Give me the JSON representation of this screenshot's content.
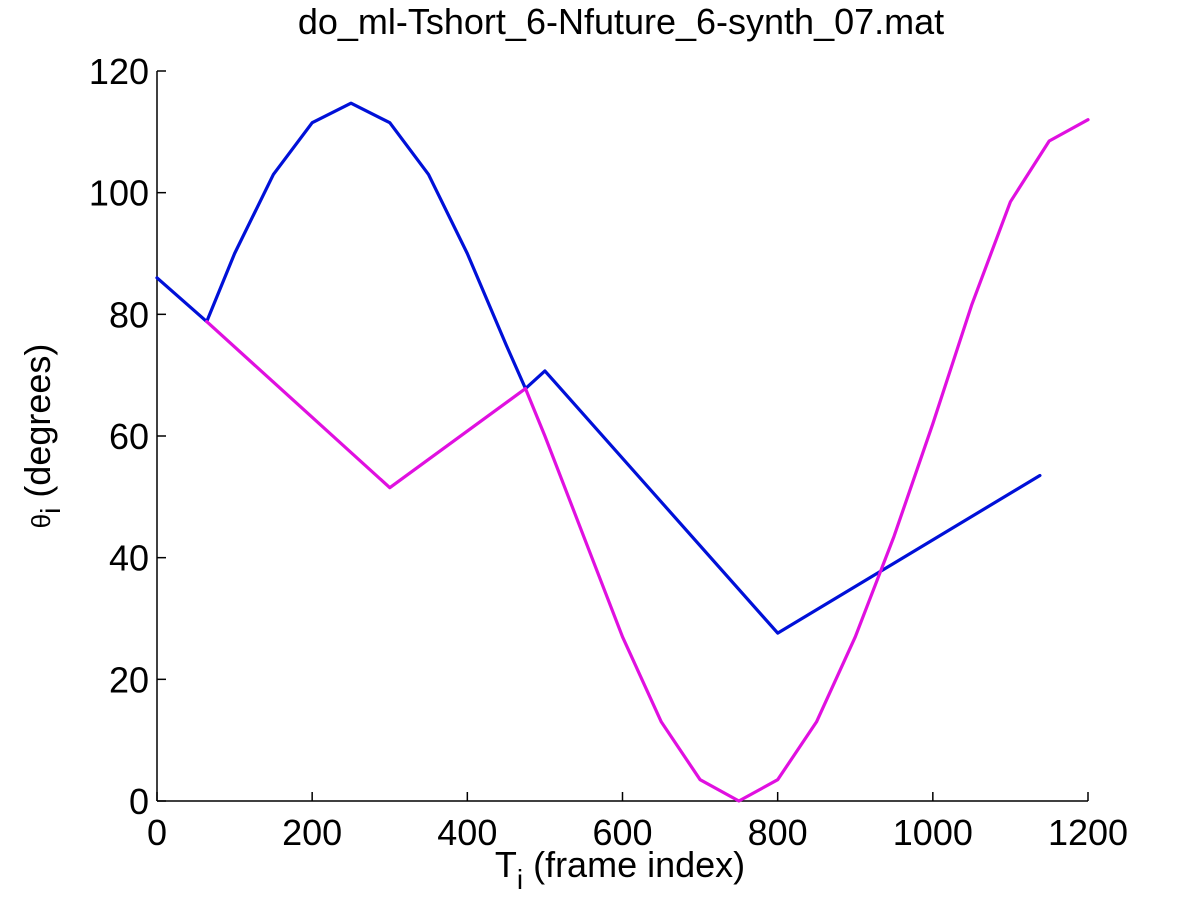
{
  "chart_data": {
    "type": "line",
    "title": "do_ml-Tshort_6-Nfuture_6-synth_07.mat",
    "xlabel": {
      "main": "T",
      "sub": "i",
      "rest": " (frame index)"
    },
    "ylabel": {
      "main": "θ",
      "sub": "i",
      "rest": " (degrees)"
    },
    "xlim": [
      0,
      1200
    ],
    "ylim": [
      0,
      120
    ],
    "xticks": [
      0,
      200,
      400,
      600,
      800,
      1000,
      1200
    ],
    "yticks": [
      0,
      20,
      40,
      60,
      80,
      100,
      120
    ],
    "xtick_labels": [
      "0",
      "200",
      "400",
      "600",
      "800",
      "1000",
      "1200"
    ],
    "ytick_labels": [
      "0",
      "20",
      "40",
      "60",
      "80",
      "100",
      "120"
    ],
    "grid": false,
    "series": [
      {
        "color": "#0010d8",
        "points": [
          [
            0,
            86
          ],
          [
            64,
            78.8
          ],
          [
            100,
            90
          ],
          [
            150,
            103
          ],
          [
            200,
            111.5
          ],
          [
            250,
            114.7
          ],
          [
            300,
            111.5
          ],
          [
            350,
            103
          ],
          [
            400,
            90
          ],
          [
            450,
            75
          ],
          [
            475,
            67.8
          ],
          [
            500,
            70.7
          ],
          [
            800,
            27.6
          ],
          [
            1138,
            53.5
          ]
        ]
      },
      {
        "color": "#e010e0",
        "points": [
          [
            64,
            78.8
          ],
          [
            300,
            51.5
          ],
          [
            475,
            67.8
          ],
          [
            500,
            60
          ],
          [
            550,
            43.5
          ],
          [
            600,
            27
          ],
          [
            650,
            13
          ],
          [
            700,
            3.5
          ],
          [
            750,
            0
          ],
          [
            800,
            3.5
          ],
          [
            850,
            13
          ],
          [
            900,
            27
          ],
          [
            950,
            43.5
          ],
          [
            1000,
            62
          ],
          [
            1050,
            81.5
          ],
          [
            1100,
            98.5
          ],
          [
            1150,
            108.5
          ],
          [
            1200,
            112
          ]
        ]
      }
    ]
  }
}
